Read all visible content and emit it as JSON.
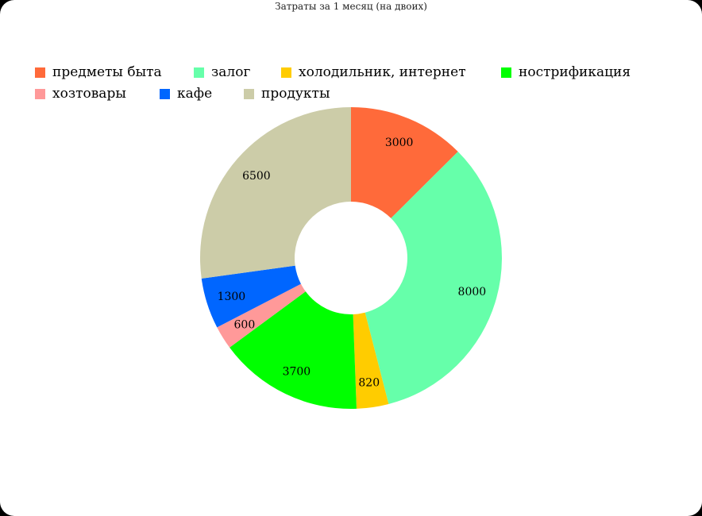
{
  "chart_data": {
    "type": "pie",
    "donut": true,
    "title": "Затраты за 1 месяц (на двоих)",
    "categories": [
      "предметы быта",
      "залог",
      "холодильник, интернет",
      "нострификация",
      "хозтовары",
      "кафе",
      "продукты"
    ],
    "values": [
      3000,
      8000,
      820,
      3700,
      600,
      1300,
      6500
    ],
    "value_labels": [
      "3000",
      "8000",
      "820",
      "3700",
      "600",
      "1300",
      "6500"
    ],
    "colors": [
      "#ff6a3a",
      "#66ffaa",
      "#ffcc00",
      "#00ff00",
      "#ff9999",
      "#0066ff",
      "#cccca8"
    ],
    "legend": "top"
  }
}
